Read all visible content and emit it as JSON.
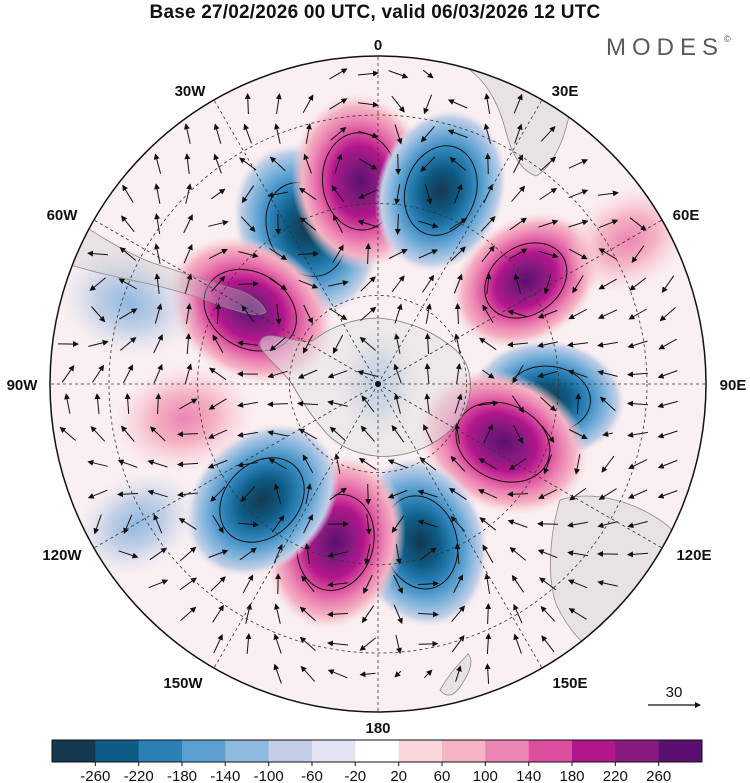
{
  "header": {
    "title": "Base 27/02/2026 00 UTC, valid 06/03/2026 12 UTC",
    "brand": "MODES",
    "brand_mark": "©"
  },
  "map": {
    "projection": "polar-stereographic-south",
    "longitude_labels": [
      "0",
      "30E",
      "60E",
      "90E",
      "120E",
      "150E",
      "180",
      "150W",
      "120W",
      "90W",
      "60W",
      "30W"
    ],
    "vector_reference": {
      "label": "30"
    }
  },
  "colorbar": {
    "tick_labels": [
      "-260",
      "-220",
      "-180",
      "-140",
      "-100",
      "-60",
      "-20",
      "20",
      "60",
      "100",
      "140",
      "180",
      "220",
      "260"
    ],
    "colors": [
      "#14384f",
      "#0e5b85",
      "#2a80b5",
      "#5a9fcf",
      "#8fbadf",
      "#c3cfe6",
      "#e3e4f1",
      "#ffffff",
      "#f8d6dc",
      "#f5b3c3",
      "#ec85b3",
      "#dc4f9e",
      "#b2168c",
      "#881a7f",
      "#5b0f70"
    ]
  },
  "anomalies": [
    {
      "value": -240,
      "lon_deg": -25,
      "rad_frac": 0.52
    },
    {
      "value": 240,
      "lon_deg": -5,
      "rad_frac": 0.62
    },
    {
      "value": -200,
      "lon_deg": 18,
      "rad_frac": 0.62
    },
    {
      "value": 180,
      "lon_deg": 55,
      "rad_frac": 0.55
    },
    {
      "value": -160,
      "lon_deg": 95,
      "rad_frac": 0.52
    },
    {
      "value": 240,
      "lon_deg": 115,
      "rad_frac": 0.42
    },
    {
      "value": -220,
      "lon_deg": 165,
      "rad_frac": 0.5
    },
    {
      "value": 240,
      "lon_deg": -165,
      "rad_frac": 0.5
    },
    {
      "value": -220,
      "lon_deg": -135,
      "rad_frac": 0.5
    },
    {
      "value": 120,
      "lon_deg": -100,
      "rad_frac": 0.6
    },
    {
      "value": 240,
      "lon_deg": -60,
      "rad_frac": 0.45
    },
    {
      "value": -120,
      "lon_deg": -72,
      "rad_frac": 0.8
    },
    {
      "value": -20,
      "lon_deg": 0,
      "rad_frac": 0.0
    },
    {
      "value": 80,
      "lon_deg": 60,
      "rad_frac": 0.88
    },
    {
      "value": -80,
      "lon_deg": -120,
      "rad_frac": 0.85
    }
  ]
}
